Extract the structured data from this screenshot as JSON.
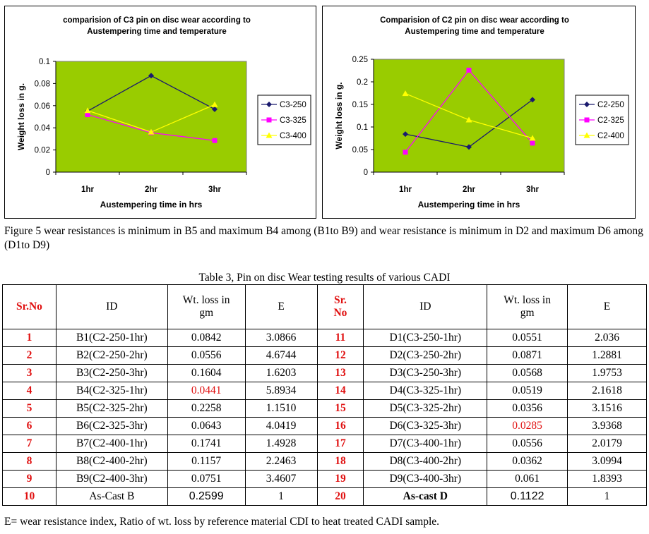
{
  "charts": [
    {
      "type": "line",
      "title_lines": [
        "comparision of C3 pin on disc wear according to",
        "Austempering time and temperature"
      ],
      "xlabel": "Austempering time in hrs",
      "ylabel": "Weight loss in g.",
      "categories": [
        "1hr",
        "2hr",
        "3hr"
      ],
      "ylim": [
        0,
        0.1
      ],
      "yticks": [
        0,
        0.02,
        0.04,
        0.06,
        0.08,
        0.1
      ],
      "ytick_labels": [
        "0",
        "0.02",
        "0.04",
        "0.06",
        "0.08",
        "0.1"
      ],
      "series": [
        {
          "name": "C3-250",
          "values": [
            0.0551,
            0.0871,
            0.0568
          ],
          "color": "#1a1a6e",
          "marker": "diamond"
        },
        {
          "name": "C3-325",
          "values": [
            0.0519,
            0.0356,
            0.0285
          ],
          "color": "#ff00ff",
          "marker": "square"
        },
        {
          "name": "C3-400",
          "values": [
            0.0556,
            0.0362,
            0.061
          ],
          "color": "#ffff00",
          "marker": "triangle"
        }
      ]
    },
    {
      "type": "line",
      "title_lines": [
        "Comparision of C2 pin on disc wear according to",
        "Austempering time and temperature"
      ],
      "xlabel": "Austempering time in hrs",
      "ylabel": "Weight loss in g.",
      "categories": [
        "1hr",
        "2hr",
        "3hr"
      ],
      "ylim": [
        0,
        0.25
      ],
      "yticks": [
        0,
        0.05,
        0.1,
        0.15,
        0.2,
        0.25
      ],
      "ytick_labels": [
        "0",
        "0.05",
        "0.1",
        "0.15",
        "0.2",
        "0.25"
      ],
      "series": [
        {
          "name": "C2-250",
          "values": [
            0.0842,
            0.0556,
            0.1604
          ],
          "color": "#1a1a6e",
          "marker": "diamond"
        },
        {
          "name": "C2-325",
          "values": [
            0.0441,
            0.2258,
            0.0643
          ],
          "color": "#ff00ff",
          "marker": "square"
        },
        {
          "name": "C2-400",
          "values": [
            0.1741,
            0.1157,
            0.0751
          ],
          "color": "#ffff00",
          "marker": "triangle"
        }
      ]
    }
  ],
  "caption": "Figure 5 wear resistances is minimum in B5 and maximum B4 among (B1to B9) and wear resistance is minimum in D2 and maximum D6 among (D1to D9)",
  "table": {
    "title": "Table 3, Pin on disc Wear testing results of various CADI",
    "headers": {
      "sr1_line1": "Sr.No",
      "id1": "ID",
      "wt1_line1": "Wt. loss in",
      "wt1_line2": "gm",
      "e1": "E",
      "sr2_line1": "Sr.",
      "sr2_line2": "No",
      "id2": "ID",
      "wt2_line1": "Wt. loss in",
      "wt2_line2": "gm",
      "e2": "E"
    },
    "rows": [
      {
        "sr1": "1",
        "id1": "B1(C2-250-1hr)",
        "wt1": "0.0842",
        "e1": "3.0866",
        "sr2": "11",
        "id2": "D1(C3-250-1hr)",
        "wt2": "0.0551",
        "e2": "2.036"
      },
      {
        "sr1": "2",
        "id1": "B2(C2-250-2hr)",
        "wt1": "0.0556",
        "e1": "4.6744",
        "sr2": "12",
        "id2": "D2(C3-250-2hr)",
        "wt2": "0.0871",
        "e2": "1.2881"
      },
      {
        "sr1": "3",
        "id1": "B3(C2-250-3hr)",
        "wt1": "0.1604",
        "e1": "1.6203",
        "sr2": "13",
        "id2": "D3(C3-250-3hr)",
        "wt2": "0.0568",
        "e2": "1.9753"
      },
      {
        "sr1": "4",
        "id1": "B4(C2-325-1hr)",
        "wt1": "0.0441",
        "e1": "5.8934",
        "sr2": "14",
        "id2": "D4(C3-325-1hr)",
        "wt2": "0.0519",
        "e2": "2.1618"
      },
      {
        "sr1": "5",
        "id1": "B5(C2-325-2hr)",
        "wt1": "0.2258",
        "e1": "1.1510",
        "sr2": "15",
        "id2": "D5(C3-325-2hr)",
        "wt2": "0.0356",
        "e2": "3.1516"
      },
      {
        "sr1": "6",
        "id1": "B6(C2-325-3hr)",
        "wt1": "0.0643",
        "e1": "4.0419",
        "sr2": "16",
        "id2": "D6(C3-325-3hr)",
        "wt2": "0.0285",
        "e2": "3.9368"
      },
      {
        "sr1": "7",
        "id1": "B7(C2-400-1hr)",
        "wt1": "0.1741",
        "e1": "1.4928",
        "sr2": "17",
        "id2": "D7(C3-400-1hr)",
        "wt2": "0.0556",
        "e2": "2.0179"
      },
      {
        "sr1": "8",
        "id1": "B8(C2-400-2hr)",
        "wt1": "0.1157",
        "e1": "2.2463",
        "sr2": "18",
        "id2": "D8(C3-400-2hr)",
        "wt2": "0.0362",
        "e2": "3.0994"
      },
      {
        "sr1": "9",
        "id1": "B9(C2-400-3hr)",
        "wt1": "0.0751",
        "e1": "3.4607",
        "sr2": "19",
        "id2": "D9(C3-400-3hr)",
        "wt2": "0.061",
        "e2": "1.8393"
      },
      {
        "sr1": "10",
        "id1": "As-Cast  B",
        "wt1": "0.2599",
        "e1": "1",
        "sr2": "20",
        "id2": "As-cast D",
        "wt2": "0.1122",
        "e2": "1"
      }
    ]
  },
  "footnote": "E= wear resistance index, Ratio of wt. loss by reference material CDI to heat treated CADI sample."
}
